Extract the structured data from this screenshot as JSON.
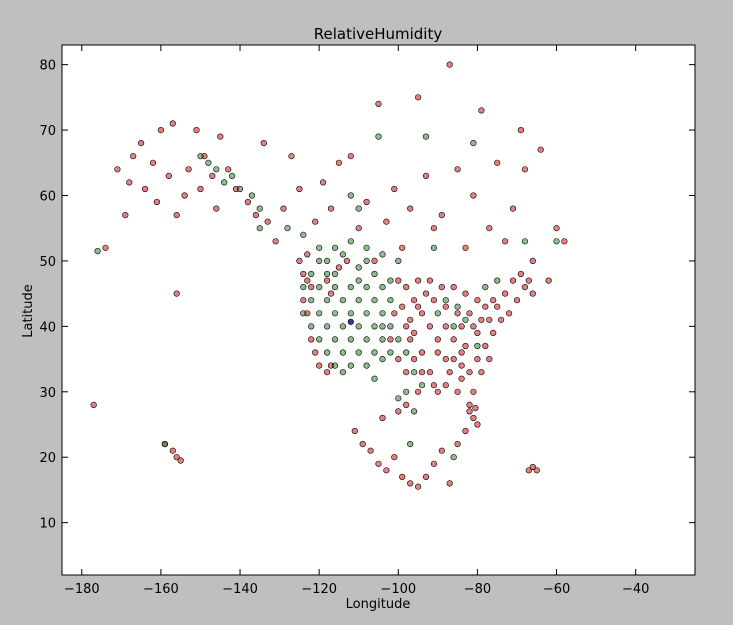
{
  "chart_data": {
    "type": "scatter",
    "title": "RelativeHumidity",
    "xlabel": "Longitude",
    "ylabel": "Latitude",
    "xlim": [
      -185,
      -25
    ],
    "ylim": [
      2,
      83
    ],
    "xticks": [
      -180,
      -160,
      -140,
      -120,
      -100,
      -80,
      -60,
      -40
    ],
    "yticks": [
      10,
      20,
      30,
      40,
      50,
      60,
      70,
      80
    ],
    "grid": false,
    "colors": {
      "red": "#cc0000",
      "green": "#1f7a1f",
      "blue": "#1a237e"
    },
    "series": [
      {
        "color": "red",
        "points": [
          [
            -177,
            28
          ],
          [
            -174,
            52
          ],
          [
            -171,
            64
          ],
          [
            -169,
            57
          ],
          [
            -168,
            62
          ],
          [
            -167,
            66
          ],
          [
            -165,
            68
          ],
          [
            -164,
            61
          ],
          [
            -162,
            65
          ],
          [
            -161,
            59
          ],
          [
            -160,
            70
          ],
          [
            -158,
            63
          ],
          [
            -157,
            71
          ],
          [
            -156,
            57
          ],
          [
            -154,
            60
          ],
          [
            -153,
            64
          ],
          [
            -151,
            70
          ],
          [
            -150,
            61
          ],
          [
            -149,
            66
          ],
          [
            -147,
            63
          ],
          [
            -146,
            58
          ],
          [
            -145,
            69
          ],
          [
            -143,
            64
          ],
          [
            -141,
            61
          ],
          [
            -138,
            59
          ],
          [
            -136,
            57
          ],
          [
            -134,
            68
          ],
          [
            -133,
            56
          ],
          [
            -131,
            53
          ],
          [
            -129,
            58
          ],
          [
            -127,
            66
          ],
          [
            -125,
            61
          ],
          [
            -123,
            51
          ],
          [
            -121,
            56
          ],
          [
            -119,
            62
          ],
          [
            -117,
            58
          ],
          [
            -115,
            65
          ],
          [
            -112,
            66
          ],
          [
            -110,
            55
          ],
          [
            -108,
            59
          ],
          [
            -106,
            50
          ],
          [
            -105,
            74
          ],
          [
            -103,
            56
          ],
          [
            -101,
            61
          ],
          [
            -99,
            52
          ],
          [
            -97,
            58
          ],
          [
            -95,
            75
          ],
          [
            -93,
            63
          ],
          [
            -91,
            55
          ],
          [
            -89,
            57
          ],
          [
            -87,
            80
          ],
          [
            -85,
            64
          ],
          [
            -83,
            52
          ],
          [
            -81,
            60
          ],
          [
            -79,
            73
          ],
          [
            -77,
            55
          ],
          [
            -75,
            65
          ],
          [
            -73,
            53
          ],
          [
            -71,
            58
          ],
          [
            -69,
            70
          ],
          [
            -68,
            64
          ],
          [
            -66,
            50
          ],
          [
            -64,
            67
          ],
          [
            -62,
            47
          ],
          [
            -60,
            55
          ],
          [
            -58,
            53
          ],
          [
            -156,
            45
          ],
          [
            -156,
            20
          ],
          [
            -157,
            21
          ],
          [
            -159,
            22
          ],
          [
            -155,
            19.5
          ],
          [
            -111,
            24
          ],
          [
            -109,
            22
          ],
          [
            -107,
            21
          ],
          [
            -105,
            19
          ],
          [
            -103,
            18
          ],
          [
            -101,
            20
          ],
          [
            -99,
            17
          ],
          [
            -97,
            16
          ],
          [
            -95,
            15.5
          ],
          [
            -93,
            17
          ],
          [
            -91,
            19
          ],
          [
            -89,
            21
          ],
          [
            -87,
            16
          ],
          [
            -85,
            22
          ],
          [
            -83,
            24
          ],
          [
            -67,
            18
          ],
          [
            -66,
            18.5
          ],
          [
            -65,
            18
          ],
          [
            -104,
            26
          ],
          [
            -100,
            27
          ],
          [
            -98,
            28
          ],
          [
            -82,
            28
          ],
          [
            -81,
            26
          ],
          [
            -80.5,
            27.5
          ],
          [
            -81,
            30
          ],
          [
            -82,
            27
          ],
          [
            -80,
            25
          ],
          [
            -95,
            30
          ],
          [
            -90,
            30
          ],
          [
            -88,
            31
          ],
          [
            -85,
            30
          ],
          [
            -92,
            33
          ],
          [
            -88,
            35
          ],
          [
            -84,
            34
          ],
          [
            -80,
            35
          ],
          [
            -78,
            37
          ],
          [
            -76,
            39
          ],
          [
            -74,
            41
          ],
          [
            -72,
            42
          ],
          [
            -70,
            44
          ],
          [
            -68,
            46
          ],
          [
            -66,
            45
          ],
          [
            -76,
            44
          ],
          [
            -78,
            43
          ],
          [
            -82,
            42
          ],
          [
            -84,
            40
          ],
          [
            -86,
            38
          ],
          [
            -88,
            40
          ],
          [
            -90,
            38
          ],
          [
            -92,
            40
          ],
          [
            -94,
            42
          ],
          [
            -96,
            44
          ],
          [
            -98,
            46
          ],
          [
            -100,
            47
          ],
          [
            -95,
            47
          ],
          [
            -92,
            47
          ],
          [
            -89,
            46
          ],
          [
            -86,
            46
          ],
          [
            -83,
            45
          ],
          [
            -80,
            44
          ],
          [
            -97,
            38
          ],
          [
            -96,
            35
          ],
          [
            -98,
            33
          ],
          [
            -100,
            35
          ],
          [
            -102,
            38
          ],
          [
            -101,
            42
          ],
          [
            -98,
            40
          ],
          [
            -94,
            36
          ],
          [
            -90,
            36
          ],
          [
            -86,
            35
          ],
          [
            -83,
            37
          ],
          [
            -80,
            39
          ],
          [
            -77,
            41
          ],
          [
            -75,
            43
          ],
          [
            -73,
            45
          ],
          [
            -71,
            47
          ],
          [
            -69,
            48
          ],
          [
            -67,
            47
          ],
          [
            -88,
            43
          ],
          [
            -91,
            44
          ],
          [
            -93,
            45
          ],
          [
            -95,
            43
          ],
          [
            -97,
            41
          ],
          [
            -99,
            43
          ],
          [
            -96,
            39
          ],
          [
            -94,
            33
          ],
          [
            -91,
            31
          ],
          [
            -87,
            33
          ],
          [
            -84,
            32
          ],
          [
            -82,
            33
          ],
          [
            -79,
            33
          ],
          [
            -77,
            35
          ],
          [
            -85,
            42
          ],
          [
            -81,
            40
          ],
          [
            -79,
            41
          ],
          [
            -84,
            36
          ],
          [
            -123,
            47
          ],
          [
            -124,
            44
          ],
          [
            -123,
            42
          ],
          [
            -122,
            38
          ],
          [
            -121,
            36
          ],
          [
            -120,
            34
          ],
          [
            -118,
            33
          ],
          [
            -117,
            34
          ],
          [
            -124,
            48
          ],
          [
            -122,
            46
          ],
          [
            -125,
            50
          ],
          [
            -118,
            47
          ],
          [
            -117,
            45
          ],
          [
            -115,
            49
          ],
          [
            -113,
            50
          ]
        ]
      },
      {
        "color": "green",
        "points": [
          [
            -176,
            51.5
          ],
          [
            -159,
            22
          ],
          [
            -150,
            66
          ],
          [
            -148,
            65
          ],
          [
            -146,
            64
          ],
          [
            -144,
            62
          ],
          [
            -142,
            63
          ],
          [
            -140,
            61
          ],
          [
            -137,
            60
          ],
          [
            -135,
            58
          ],
          [
            -128,
            55
          ],
          [
            -124,
            54
          ],
          [
            -120,
            52
          ],
          [
            -118,
            50
          ],
          [
            -116,
            48
          ],
          [
            -114,
            51
          ],
          [
            -112,
            53
          ],
          [
            -110,
            49
          ],
          [
            -108,
            52
          ],
          [
            -106,
            48
          ],
          [
            -104,
            51
          ],
          [
            -102,
            47
          ],
          [
            -100,
            50
          ],
          [
            -120,
            46
          ],
          [
            -118,
            44
          ],
          [
            -116,
            42
          ],
          [
            -114,
            40
          ],
          [
            -112,
            38
          ],
          [
            -110,
            36
          ],
          [
            -108,
            34
          ],
          [
            -106,
            32
          ],
          [
            -104,
            35
          ],
          [
            -122,
            40
          ],
          [
            -120,
            38
          ],
          [
            -118,
            36
          ],
          [
            -116,
            34
          ],
          [
            -114,
            33
          ],
          [
            -112,
            34
          ],
          [
            -110,
            40
          ],
          [
            -108,
            42
          ],
          [
            -106,
            44
          ],
          [
            -104,
            42
          ],
          [
            -102,
            40
          ],
          [
            -100,
            38
          ],
          [
            -98,
            36
          ],
          [
            -120,
            42
          ],
          [
            -118,
            40
          ],
          [
            -116,
            38
          ],
          [
            -114,
            36
          ],
          [
            -112,
            42
          ],
          [
            -110,
            44
          ],
          [
            -108,
            46
          ],
          [
            -106,
            40
          ],
          [
            -104,
            38
          ],
          [
            -102,
            36
          ],
          [
            -124,
            46
          ],
          [
            -122,
            44
          ],
          [
            -112,
            46
          ],
          [
            -114,
            44
          ],
          [
            -116,
            46
          ],
          [
            -110,
            47
          ],
          [
            -108,
            38
          ],
          [
            -106,
            36
          ],
          [
            -104,
            46
          ],
          [
            -96,
            33
          ],
          [
            -94,
            31
          ],
          [
            -98,
            30
          ],
          [
            -100,
            29
          ],
          [
            -96,
            27
          ],
          [
            -88,
            44
          ],
          [
            -85,
            43
          ],
          [
            -83,
            41
          ],
          [
            -80,
            37
          ],
          [
            -78,
            46
          ],
          [
            -86,
            40
          ],
          [
            -90,
            42
          ],
          [
            -75,
            47
          ],
          [
            -81,
            68
          ],
          [
            -93,
            69
          ],
          [
            -105,
            69
          ],
          [
            -91,
            52
          ],
          [
            -68,
            53
          ],
          [
            -60,
            53
          ],
          [
            -97,
            22
          ],
          [
            -86,
            20
          ],
          [
            -110,
            58
          ],
          [
            -112,
            60
          ],
          [
            -135,
            55
          ],
          [
            -118,
            48
          ],
          [
            -122,
            48
          ],
          [
            -120,
            50
          ],
          [
            -116,
            52
          ],
          [
            -108,
            50
          ],
          [
            -124,
            42
          ],
          [
            -102,
            44
          ],
          [
            -104,
            40
          ]
        ]
      },
      {
        "color": "blue",
        "points": [
          [
            -112,
            40.7
          ]
        ]
      }
    ]
  }
}
